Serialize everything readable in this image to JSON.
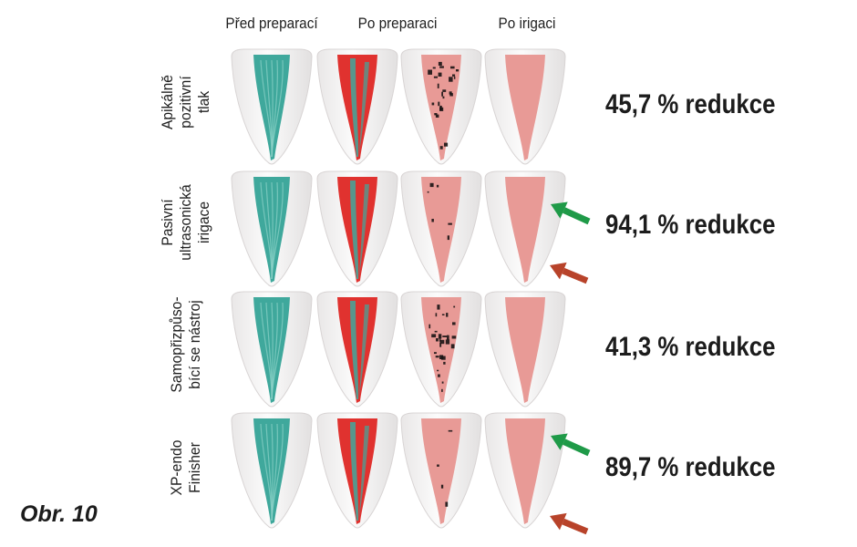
{
  "columns": [
    "Před preparací",
    "Po preparaci",
    "Po irigaci"
  ],
  "rows": [
    {
      "label_lines": [
        "Apikálně",
        "pozitivní",
        "tlak"
      ],
      "reduction": "45,7 % redukce"
    },
    {
      "label_lines": [
        "Pasivní",
        "ultrasonická",
        "irigace"
      ],
      "reduction": "94,1 % redukce"
    },
    {
      "label_lines": [
        "Samopřizpůso-",
        "bící se nástroj"
      ],
      "reduction": "41,3 % redukce"
    },
    {
      "label_lines": [
        "XP-endo",
        "Finisher"
      ],
      "reduction": "89,7 % redukce"
    }
  ],
  "figure_label": "Obr. 10",
  "colors": {
    "debris_teal": "#3fa89c",
    "preparation_red": "#e0322f",
    "root_canal_pink": "#e89a96",
    "debris_black": "#1a1414",
    "arrow_green": "#1f9a48",
    "arrow_red": "#b8432a"
  }
}
